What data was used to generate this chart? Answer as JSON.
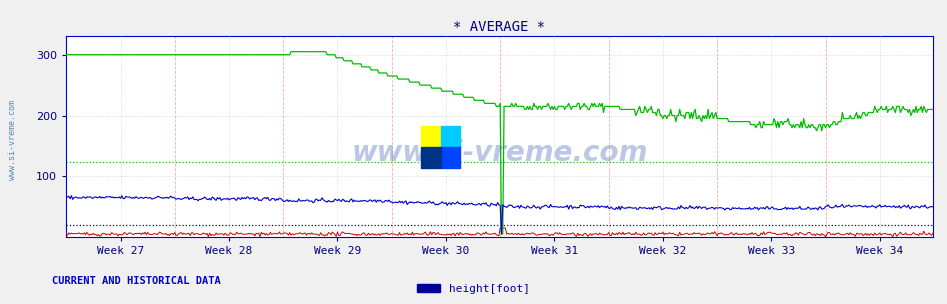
{
  "title": "* AVERAGE *",
  "title_color": "#000080",
  "title_fontsize": 10,
  "bg_color": "#f0f0f0",
  "plot_bg_color": "#ffffff",
  "ylim": [
    0,
    330
  ],
  "yticks": [
    100,
    200,
    300
  ],
  "x_week_labels": [
    "Week 27",
    "Week 28",
    "Week 29",
    "Week 30",
    "Week 31",
    "Week 32",
    "Week 33",
    "Week 34"
  ],
  "grid_color": "#c8c8c8",
  "red_vline_color": "#ffaaaa",
  "green_hline_value": 123,
  "green_hline_color": "#00cc00",
  "blue_hline_value": 20,
  "blue_hline_color": "#0000aa",
  "axis_color": "#0000cc",
  "tick_color": "#000080",
  "watermark_text": "www.si-vreme.com",
  "watermark_color": "#2244aa",
  "watermark_alpha": 0.3,
  "sidebar_text": "www.si-vreme.com",
  "sidebar_color": "#5588bb",
  "sidebar_fontsize": 6,
  "current_label": "CURRENT AND HISTORICAL DATA",
  "current_label_color": "#0000cc",
  "legend_label": "height[foot]",
  "legend_color": "#000099",
  "legend_box_color": "#000099",
  "n_points": 672,
  "green_line_color": "#00bb00",
  "blue_line_color": "#0000cc",
  "red_line_color": "#cc0000",
  "icon_yellow": "#ffff00",
  "icon_cyan": "#00ccff",
  "icon_blue": "#0044ff"
}
